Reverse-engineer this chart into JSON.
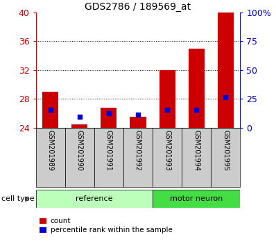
{
  "title": "GDS2786 / 189569_at",
  "samples": [
    "GSM201989",
    "GSM201990",
    "GSM201991",
    "GSM201992",
    "GSM201993",
    "GSM201994",
    "GSM201995"
  ],
  "red_values": [
    29.0,
    24.5,
    26.8,
    25.5,
    32.0,
    35.0,
    40.0
  ],
  "blue_values": [
    26.5,
    25.5,
    26.0,
    25.8,
    26.5,
    26.5,
    28.2
  ],
  "ymin": 24,
  "ymax": 40,
  "yticks": [
    24,
    28,
    32,
    36,
    40
  ],
  "right_yticks": [
    0,
    25,
    50,
    75,
    100
  ],
  "right_yticklabels": [
    "0",
    "25",
    "50",
    "75",
    "100%"
  ],
  "bar_color": "#cc0000",
  "blue_color": "#0000cc",
  "n_reference": 4,
  "n_motor": 3,
  "reference_color": "#bbffbb",
  "motor_neuron_color": "#44dd44",
  "sample_bg_color": "#cccccc",
  "group_label_reference": "reference",
  "group_label_motor": "motor neuron",
  "cell_type_label": "cell type",
  "legend_count": "count",
  "legend_percentile": "percentile rank within the sample",
  "bar_width": 0.55,
  "left_tick_color": "#cc0000",
  "right_tick_color": "#0000cc",
  "title_fontsize": 10
}
